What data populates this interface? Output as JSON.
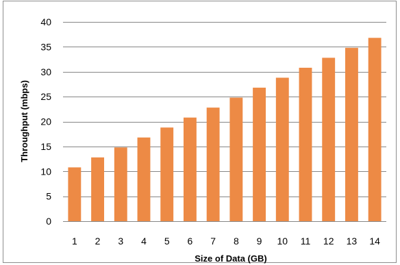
{
  "chart_data": {
    "type": "bar",
    "categories": [
      "1",
      "2",
      "3",
      "4",
      "5",
      "6",
      "7",
      "8",
      "9",
      "10",
      "11",
      "12",
      "13",
      "14"
    ],
    "values": [
      10.8,
      12.8,
      14.8,
      16.8,
      18.8,
      20.8,
      22.8,
      24.8,
      26.8,
      28.8,
      30.8,
      32.8,
      34.8,
      36.8
    ],
    "xlabel": "Size of Data (GB)",
    "ylabel": "Throughput (mbps)",
    "ylim": [
      0,
      40
    ],
    "yticks": [
      "0",
      "5",
      "10",
      "15",
      "20",
      "25",
      "30",
      "35",
      "40"
    ],
    "grid": "horizontal",
    "legend": "none",
    "bar_color": "#ed8a45",
    "grid_color": "#868686"
  }
}
